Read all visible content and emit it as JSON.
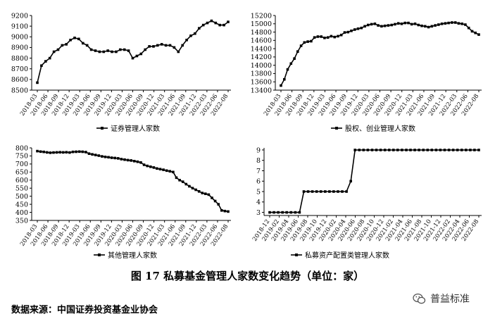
{
  "figure": {
    "caption": "图 17 私募基金管理人家数变化趋势（单位：家）",
    "source": "数据来源：中国证券投资基金业协会",
    "watermark": "普益标准",
    "watermark_icon": "wechat-logo-icon"
  },
  "chart_data": [
    {
      "type": "line",
      "series": [
        {
          "name": "证券管理人家数",
          "values": [
            8570,
            8730,
            8770,
            8800,
            8860,
            8880,
            8920,
            8930,
            8970,
            8990,
            8980,
            8940,
            8920,
            8880,
            8870,
            8860,
            8860,
            8870,
            8860,
            8860,
            8880,
            8880,
            8870,
            8800,
            8820,
            8840,
            8880,
            8910,
            8910,
            8920,
            8930,
            8920,
            8920,
            8900,
            8860,
            8920,
            8970,
            9010,
            9030,
            9080,
            9110,
            9130,
            9150,
            9130,
            9110,
            9110,
            9140
          ]
        }
      ],
      "x": [
        "2018-03",
        "2018-04",
        "2018-05",
        "2018-06",
        "2018-07",
        "2018-08",
        "2018-09",
        "2018-10",
        "2018-11",
        "2018-12",
        "2019-01",
        "2019-02",
        "2019-03",
        "2019-04",
        "2019-05",
        "2019-06",
        "2019-07",
        "2019-08",
        "2019-09",
        "2019-10",
        "2019-11",
        "2019-12",
        "2020-01",
        "2020-02",
        "2020-03",
        "2020-04",
        "2020-05",
        "2020-06",
        "2020-07",
        "2020-08",
        "2020-09",
        "2020-10",
        "2020-11",
        "2020-12",
        "2021-01",
        "2021-02",
        "2021-03",
        "2021-04",
        "2021-05",
        "2021-06",
        "2021-07",
        "2021-08",
        "2021-09",
        "2021-10",
        "2021-11",
        "2021-12",
        "2022-01"
      ],
      "x_ticks": [
        "2018-03",
        "2018-06",
        "2018-09",
        "2018-12",
        "2019-03",
        "2019-06",
        "2019-09",
        "2019-12",
        "2020-03",
        "2020-06",
        "2020-09",
        "2020-12",
        "2021-03",
        "2021-06",
        "2021-09",
        "2021-12",
        "2022-03",
        "2022-06",
        "2022-08"
      ],
      "y_ticks": [
        8500,
        8600,
        8700,
        8800,
        8900,
        9000,
        9100,
        9200
      ],
      "ylim": [
        8500,
        9200
      ]
    },
    {
      "type": "line",
      "series": [
        {
          "name": "股权、创业管理人家数",
          "values": [
            13510,
            13660,
            13900,
            14040,
            14160,
            14330,
            14470,
            14550,
            14570,
            14580,
            14670,
            14690,
            14690,
            14660,
            14670,
            14700,
            14680,
            14700,
            14730,
            14790,
            14800,
            14830,
            14860,
            14880,
            14900,
            14940,
            14970,
            14990,
            15000,
            14960,
            14940,
            14950,
            14960,
            14970,
            14990,
            15010,
            15000,
            15020,
            15020,
            14990,
            15000,
            14970,
            14950,
            14940,
            14920,
            14940,
            14960,
            14980,
            15000,
            15010,
            15020,
            15030,
            15030,
            15010,
            15000,
            14980,
            14900,
            14820,
            14780,
            14740
          ]
        }
      ],
      "x_ticks": [
        "2018-03",
        "2018-06",
        "2018-09",
        "2018-12",
        "2019-03",
        "2019-06",
        "2019-09",
        "2019-12",
        "2020-03",
        "2020-06",
        "2020-09",
        "2020-12",
        "2021-03",
        "2021-06",
        "2021-09",
        "2021-12",
        "2022-03",
        "2022-06",
        "2022-08"
      ],
      "y_ticks": [
        13400,
        13600,
        13800,
        14000,
        14200,
        14400,
        14600,
        14800,
        15000,
        15200
      ],
      "ylim": [
        13400,
        15200
      ]
    },
    {
      "type": "line",
      "series": [
        {
          "name": "其他管理人家数",
          "values": [
            780,
            777,
            775,
            772,
            770,
            771,
            772,
            773,
            772,
            773,
            771,
            775,
            776,
            777,
            776,
            774,
            764,
            760,
            756,
            752,
            747,
            744,
            742,
            739,
            737,
            735,
            730,
            727,
            724,
            722,
            718,
            714,
            709,
            695,
            688,
            683,
            678,
            672,
            668,
            664,
            659,
            655,
            650,
            615,
            600,
            590,
            575,
            562,
            550,
            540,
            530,
            520,
            515,
            510,
            490,
            470,
            450,
            412,
            408,
            405
          ]
        }
      ],
      "x_ticks": [
        "2018-03",
        "2018-06",
        "2018-09",
        "2018-12",
        "2019-03",
        "2019-06",
        "2019-09",
        "2019-12",
        "2020-03",
        "2020-06",
        "2020-09",
        "2020-12",
        "2021-03",
        "2021-06",
        "2021-09",
        "2021-12",
        "2022-03",
        "2022-06",
        "2022-08"
      ],
      "y_ticks": [
        350,
        400,
        450,
        500,
        550,
        600,
        650,
        700,
        750,
        800
      ],
      "ylim": [
        350,
        800
      ]
    },
    {
      "type": "line",
      "series": [
        {
          "name": "私募资产配置类管理人家数",
          "values": [
            3,
            3,
            3,
            3,
            3,
            3,
            3,
            3,
            5,
            5,
            5,
            5,
            5,
            5,
            5,
            5,
            5,
            5,
            5,
            6,
            9,
            9,
            9,
            9,
            9,
            9,
            9,
            9,
            9,
            9,
            9,
            9,
            9,
            9,
            9,
            9,
            9,
            9,
            9,
            9,
            9,
            9,
            9,
            9,
            9,
            9,
            9,
            9,
            9,
            9
          ]
        }
      ],
      "x_ticks": [
        "2018-12",
        "2019-02",
        "2019-04",
        "2019-06",
        "2019-08",
        "2019-10",
        "2019-12",
        "2020-02",
        "2020-04",
        "2020-06",
        "2020-08",
        "2020-10",
        "2020-12",
        "2021-02",
        "2021-04",
        "2021-06",
        "2021-08",
        "2021-10",
        "2021-12",
        "2022-02",
        "2022-04",
        "2022-06",
        "2022-08"
      ],
      "y_ticks": [
        3,
        4,
        5,
        6,
        7,
        8,
        9
      ],
      "ylim": [
        2.7,
        9.2
      ]
    }
  ]
}
